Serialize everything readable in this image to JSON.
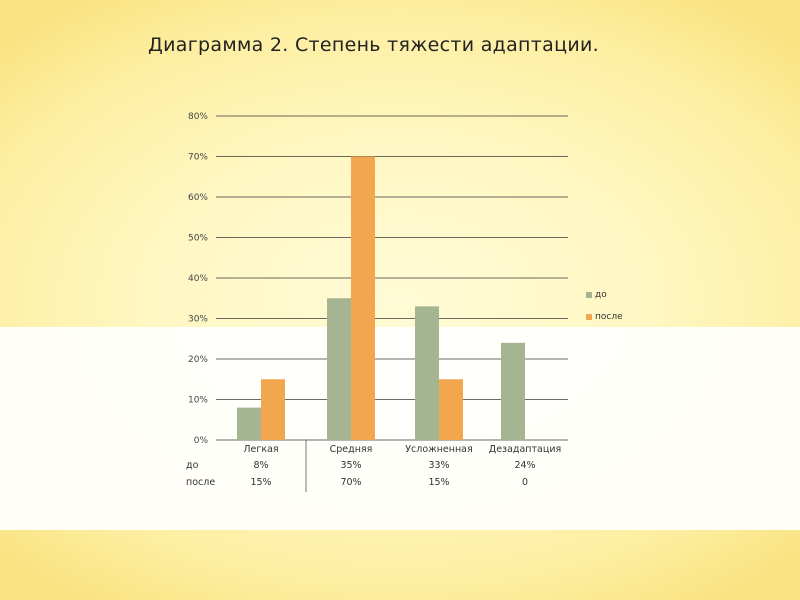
{
  "slide": {
    "title": "Диаграмма 2. Степень тяжести адаптации."
  },
  "colors": {
    "do": "#a5b592",
    "posle": "#f2a74e",
    "grid": "#3a3a3a"
  },
  "chart_data": {
    "type": "bar",
    "title": "",
    "xlabel": "",
    "ylabel": "",
    "categories": [
      "Легкая",
      "Средняя",
      "Усложненная",
      "Дезадаптация"
    ],
    "series": [
      {
        "name": "до",
        "values": [
          8,
          35,
          33,
          24
        ],
        "table_labels": [
          "8%",
          "35%",
          "33%",
          "24%"
        ]
      },
      {
        "name": "после",
        "values": [
          15,
          70,
          15,
          0
        ],
        "table_labels": [
          "15%",
          "70%",
          "15%",
          "0"
        ]
      }
    ],
    "ylim": [
      0,
      80
    ],
    "yticks": [
      "0%",
      "10%",
      "20%",
      "30%",
      "40%",
      "50%",
      "60%",
      "70%",
      "80%"
    ],
    "grid": true,
    "legend_position": "right",
    "data_table": true
  }
}
